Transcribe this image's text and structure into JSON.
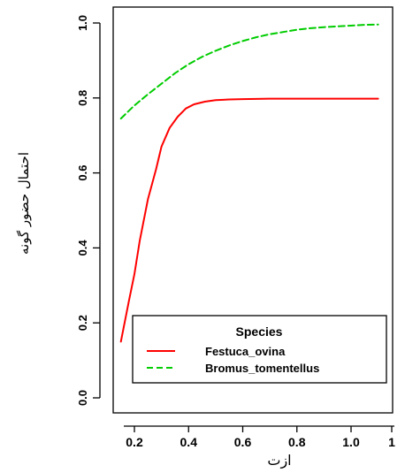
{
  "chart_data": {
    "type": "line",
    "xlabel": "ازت",
    "ylabel": "احتمال حضور گونه",
    "xlim": [
      0.15,
      1.0
    ],
    "ylim": [
      0.0,
      1.0
    ],
    "x_tick_labels": [
      "0.2",
      "0.4",
      "0.6",
      "0.8",
      "1.0",
      "1"
    ],
    "x_tick_values": [
      0.2,
      0.4,
      0.6,
      0.8,
      1.0,
      1.1
    ],
    "y_tick_labels": [
      "0.0",
      "0.2",
      "0.4",
      "0.6",
      "0.8",
      "1.0"
    ],
    "y_tick_values": [
      0.0,
      0.2,
      0.4,
      0.6,
      0.8,
      1.0
    ],
    "legend": {
      "title": "Species",
      "placement": "bottom-right"
    },
    "series": [
      {
        "name": "Festuca_ovina",
        "color": "#ff0000",
        "style": "solid",
        "x": [
          0.15,
          0.18,
          0.2,
          0.22,
          0.25,
          0.28,
          0.3,
          0.33,
          0.36,
          0.39,
          0.42,
          0.46,
          0.5,
          0.55,
          0.6,
          0.7,
          0.8,
          0.9,
          1.0,
          1.1
        ],
        "y": [
          0.15,
          0.26,
          0.33,
          0.42,
          0.53,
          0.61,
          0.67,
          0.72,
          0.75,
          0.772,
          0.783,
          0.79,
          0.794,
          0.796,
          0.797,
          0.798,
          0.798,
          0.798,
          0.798,
          0.798
        ]
      },
      {
        "name": "Bromus_tomentellus",
        "color": "#00cc00",
        "style": "dashed",
        "x": [
          0.15,
          0.2,
          0.25,
          0.3,
          0.35,
          0.4,
          0.45,
          0.5,
          0.55,
          0.6,
          0.65,
          0.7,
          0.75,
          0.8,
          0.85,
          0.9,
          0.95,
          1.0,
          1.05,
          1.1
        ],
        "y": [
          0.745,
          0.78,
          0.81,
          0.838,
          0.866,
          0.89,
          0.91,
          0.926,
          0.94,
          0.952,
          0.962,
          0.97,
          0.976,
          0.982,
          0.986,
          0.989,
          0.991,
          0.993,
          0.995,
          0.996
        ]
      }
    ]
  }
}
